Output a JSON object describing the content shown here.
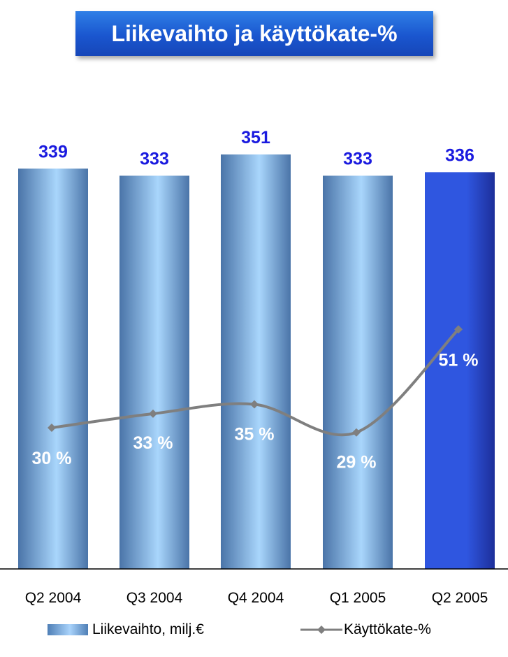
{
  "title": "Liikevaihto ja käyttökate-%",
  "colors": {
    "bar_gradient": [
      "#4a74a8",
      "#a9d6fc"
    ],
    "highlight_gradient": [
      "#1d2f9a",
      "#2f56e0"
    ],
    "bar_value_label": "#1a1adf",
    "line": "#7f7f7f",
    "pct_label": "#ffffff",
    "axis": "#000000"
  },
  "chart_data": {
    "type": "bar",
    "categories": [
      "Q2 2004",
      "Q3 2004",
      "Q4 2004",
      "Q1 2005",
      "Q2 2005"
    ],
    "series": [
      {
        "name": "Liikevaihto, milj.€",
        "type": "bar",
        "values": [
          339,
          333,
          351,
          333,
          336
        ],
        "labels": [
          "339",
          "333",
          "351",
          "333",
          "336"
        ],
        "highlight_index": 4
      },
      {
        "name": "Käyttökate-%",
        "type": "line",
        "values": [
          30,
          33,
          35,
          29,
          51
        ],
        "labels": [
          "30 %",
          "33 %",
          "35 %",
          "29 %",
          "51 %"
        ],
        "smooth": true
      }
    ],
    "grid": false,
    "legend": "bottom"
  },
  "legend": {
    "bar_label": "Liikevaihto, milj.€",
    "line_label": "Käyttökate-%"
  }
}
